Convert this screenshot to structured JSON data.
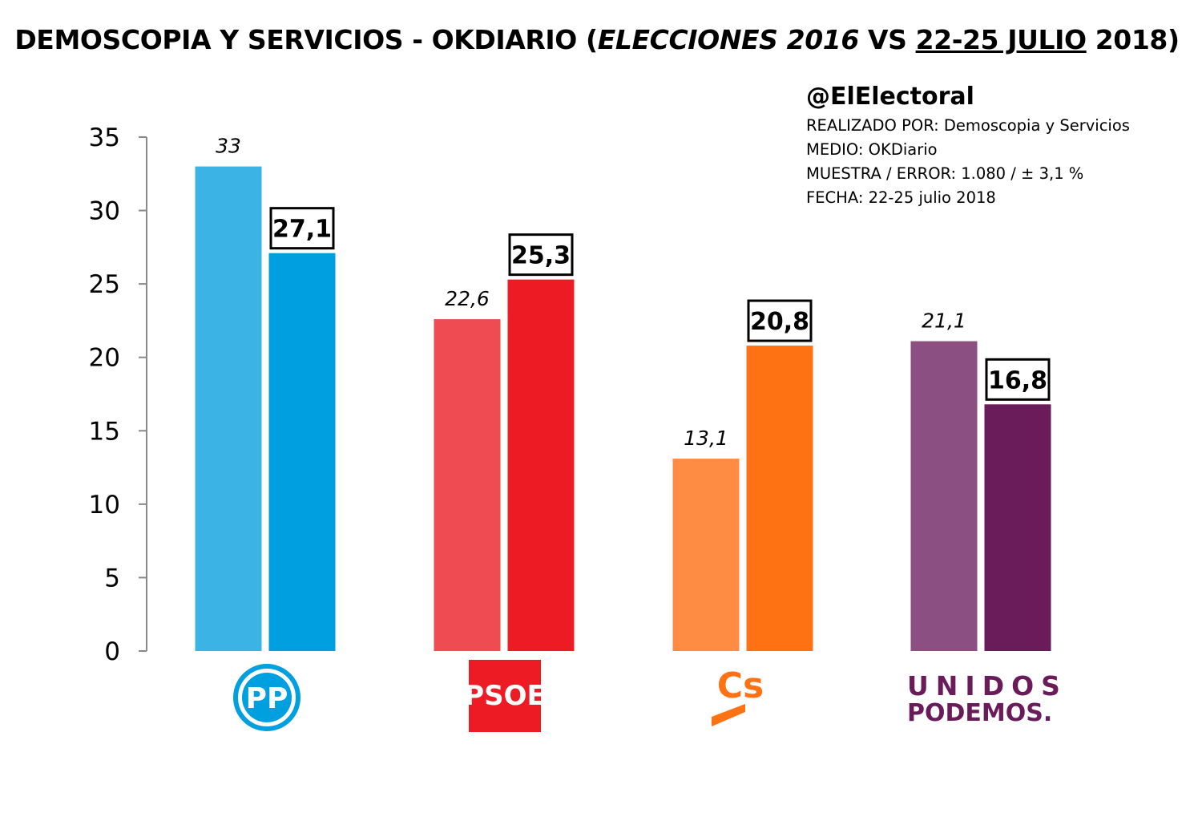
{
  "title": {
    "part1": "DEMOSCOPIA Y SERVICIOS - OKDIARIO (",
    "italic": "ELECCIONES 2016",
    "part2": " VS ",
    "underlined": "22-25 JULIO",
    "part3": " 2018)"
  },
  "info": {
    "handle": "@ElElectoral",
    "lines": [
      "REALIZADO POR: Demoscopia y Servicios",
      "MEDIO: OKDiario",
      "MUESTRA / ERROR: 1.080 / ± 3,1 %",
      "FECHA: 22-25 julio 2018"
    ]
  },
  "logos": {
    "pp": "PP",
    "psoe": "PSOE",
    "cs": "Cs",
    "unidos_line1": "UNIDOS",
    "unidos_line2": "PODEMOS."
  },
  "chart_data": {
    "type": "bar",
    "categories": [
      "PP",
      "PSOE",
      "Cs",
      "UNIDOS PODEMOS"
    ],
    "series": [
      {
        "values": [
          33,
          22.6,
          13.1,
          21.1
        ],
        "labels": [
          "33",
          "22,6",
          "13,1",
          "21,1"
        ],
        "colors": [
          "#3bb3e4",
          "#ef4b52",
          "#ff8c42",
          "#8c4f82"
        ]
      },
      {
        "values": [
          27.1,
          25.3,
          20.8,
          16.8
        ],
        "labels": [
          "27,1",
          "25,3",
          "20,8",
          "16,8"
        ],
        "colors": [
          "#009fe0",
          "#ed1c24",
          "#ff7214",
          "#6a1b5a"
        ]
      }
    ],
    "ylim": [
      0,
      35
    ],
    "yticks": [
      0,
      5,
      10,
      15,
      20,
      25,
      30,
      35
    ],
    "grid": false,
    "xlabel": "",
    "ylabel": ""
  }
}
